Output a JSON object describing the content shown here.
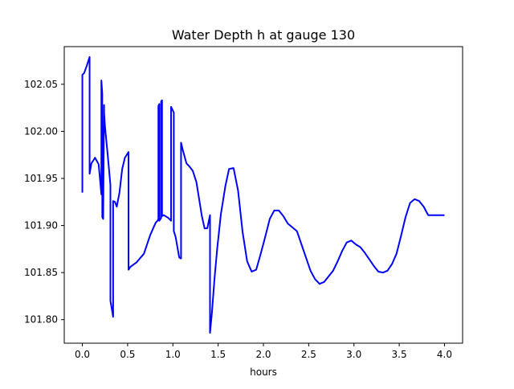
{
  "chart_data": {
    "type": "line",
    "title": "Water Depth h at gauge 130",
    "xlabel": "hours",
    "ylabel": "",
    "xlim": [
      -0.2,
      4.2
    ],
    "ylim": [
      101.775,
      102.09
    ],
    "xticks": [
      0.0,
      0.5,
      1.0,
      1.5,
      2.0,
      2.5,
      3.0,
      3.5,
      4.0
    ],
    "xtick_labels": [
      "0.0",
      "0.5",
      "1.0",
      "1.5",
      "2.0",
      "2.5",
      "3.0",
      "3.5",
      "4.0"
    ],
    "yticks": [
      101.8,
      101.85,
      101.9,
      101.95,
      102.0,
      102.05
    ],
    "ytick_labels": [
      "101.80",
      "101.85",
      "101.90",
      "101.95",
      "102.00",
      "102.05"
    ],
    "grid": false,
    "legend": "none",
    "series": [
      {
        "color": "#0000ff",
        "x": [
          0.0,
          0.0,
          0.02,
          0.05,
          0.08,
          0.08,
          0.1,
          0.14,
          0.18,
          0.21,
          0.21,
          0.22,
          0.22,
          0.23,
          0.24,
          0.24,
          0.25,
          0.28,
          0.31,
          0.31,
          0.34,
          0.34,
          0.36,
          0.38,
          0.41,
          0.44,
          0.47,
          0.51,
          0.51,
          0.53,
          0.6,
          0.68,
          0.75,
          0.81,
          0.83,
          0.84,
          0.84,
          0.85,
          0.85,
          0.87,
          0.87,
          0.88,
          0.88,
          0.9,
          0.95,
          0.98,
          0.98,
          1.01,
          1.01,
          1.03,
          1.07,
          1.09,
          1.09,
          1.11,
          1.15,
          1.18,
          1.22,
          1.26,
          1.29,
          1.32,
          1.35,
          1.38,
          1.41,
          1.41,
          1.43,
          1.46,
          1.49,
          1.53,
          1.58,
          1.62,
          1.67,
          1.72,
          1.77,
          1.82,
          1.87,
          1.92,
          1.97,
          2.02,
          2.07,
          2.12,
          2.17,
          2.22,
          2.27,
          2.32,
          2.37,
          2.42,
          2.47,
          2.52,
          2.57,
          2.62,
          2.67,
          2.72,
          2.77,
          2.82,
          2.87,
          2.92,
          2.97,
          3.02,
          3.07,
          3.12,
          3.17,
          3.22,
          3.27,
          3.32,
          3.37,
          3.42,
          3.47,
          3.52,
          3.57,
          3.62,
          3.67,
          3.72,
          3.77,
          3.82,
          3.87,
          3.92,
          3.97,
          4.0
        ],
        "y": [
          101.935,
          102.06,
          102.062,
          102.07,
          102.079,
          101.955,
          101.966,
          101.972,
          101.965,
          101.933,
          102.054,
          102.04,
          101.909,
          101.907,
          102.028,
          102.02,
          102.005,
          101.975,
          101.943,
          101.82,
          101.803,
          101.926,
          101.925,
          101.92,
          101.935,
          101.96,
          101.972,
          101.978,
          101.853,
          101.856,
          101.861,
          101.87,
          101.89,
          101.903,
          101.905,
          101.907,
          102.027,
          102.029,
          101.905,
          101.908,
          102.032,
          102.033,
          101.91,
          101.911,
          101.908,
          101.905,
          102.026,
          102.02,
          101.894,
          101.888,
          101.866,
          101.865,
          101.988,
          101.98,
          101.966,
          101.963,
          101.958,
          101.946,
          101.928,
          101.91,
          101.897,
          101.897,
          101.911,
          101.786,
          101.806,
          101.844,
          101.876,
          101.912,
          101.942,
          101.96,
          101.961,
          101.937,
          101.893,
          101.862,
          101.851,
          101.853,
          101.87,
          101.888,
          101.907,
          101.916,
          101.916,
          101.91,
          101.902,
          101.898,
          101.894,
          101.88,
          101.866,
          101.852,
          101.843,
          101.838,
          101.84,
          101.846,
          101.852,
          101.862,
          101.873,
          101.882,
          101.884,
          101.88,
          101.877,
          101.871,
          101.864,
          101.857,
          101.851,
          101.85,
          101.852,
          101.859,
          101.87,
          101.889,
          101.909,
          101.924,
          101.928,
          101.926,
          101.92,
          101.911,
          101.911,
          101.911,
          101.911,
          101.911
        ]
      }
    ]
  }
}
